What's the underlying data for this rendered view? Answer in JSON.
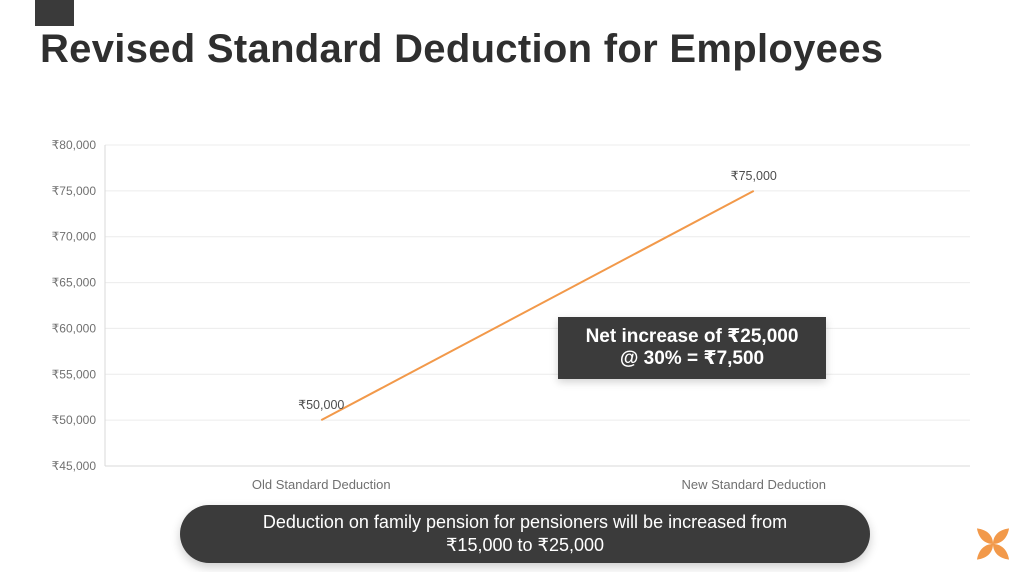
{
  "page": {
    "title": "Revised Standard Deduction for Employees"
  },
  "chart_data": {
    "type": "line",
    "title": "",
    "categories": [
      "Old Standard Deduction",
      "New Standard Deduction"
    ],
    "values": [
      50000,
      75000
    ],
    "point_labels": [
      "₹50,000",
      "₹75,000"
    ],
    "ylim": [
      45000,
      80000
    ],
    "ytick_step": 5000,
    "ytick_labels": [
      "₹45,000",
      "₹50,000",
      "₹55,000",
      "₹60,000",
      "₹65,000",
      "₹70,000",
      "₹75,000",
      "₹80,000"
    ],
    "xlabel": "",
    "ylabel": "",
    "grid": true,
    "legend": "none",
    "line_color": "#F2994A",
    "grid_color": "#ececec",
    "axis_color": "#d9d9d9",
    "tick_color": "#707070",
    "label_color": "#4d4d4d"
  },
  "annotation": {
    "line1": "Net increase of ₹25,000",
    "line2": "@ 30% = ₹7,500",
    "bg_color": "#3b3b3b",
    "text_color": "#ffffff"
  },
  "banner": {
    "line1": "Deduction on family pension for pensioners will be increased from",
    "line2": "₹15,000 to ₹25,000",
    "bg_color": "#3b3b3b",
    "text_color": "#ffffff"
  },
  "branding": {
    "logo_name": "butterfly-logo",
    "color": "#F2994A"
  },
  "theme": {
    "title_color": "#2f2f2f",
    "background": "#ffffff",
    "accent_tab_color": "#3a3a3a"
  }
}
